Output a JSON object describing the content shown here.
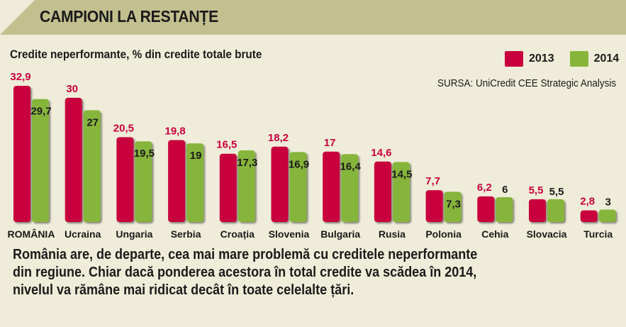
{
  "header": {
    "title": "CAMPIONI LA RESTANȚE"
  },
  "source": "SURSA: UniCredit CEE Strategic Analysis",
  "footer": {
    "line1": "România are, de departe, cea mai mare problemă cu creditele neperformante",
    "line2": "din regiune. Chiar dacă ponderea acestora în total credite va scădea în 2014,",
    "line3": "nivelul va rămâne mai ridicat decât în toate celelalte țări."
  },
  "colors": {
    "y2013": "#c8003e",
    "y2014": "#86b53a",
    "background": "#efedd9",
    "header": "#c3c08f"
  },
  "chart_data": {
    "type": "bar",
    "title": "Credite neperformante, % din credite totale brute",
    "categories": [
      "ROMÂNIA",
      "Ucraina",
      "Ungaria",
      "Serbia",
      "Croația",
      "Slovenia",
      "Bulgaria",
      "Rusia",
      "Polonia",
      "Cehia",
      "Slovacia",
      "Turcia"
    ],
    "series": [
      {
        "name": "2013",
        "values": [
          32.9,
          30,
          20.5,
          19.8,
          16.5,
          18.2,
          17,
          14.6,
          7.7,
          6.2,
          5.5,
          2.8
        ],
        "labels": [
          "32,9",
          "30",
          "20,5",
          "19,8",
          "16,5",
          "18,2",
          "17",
          "14,6",
          "7,7",
          "6,2",
          "5,5",
          "2,8"
        ]
      },
      {
        "name": "2014",
        "values": [
          29.7,
          27,
          19.5,
          19,
          17.3,
          16.9,
          16.4,
          14.5,
          7.3,
          6,
          5.5,
          3
        ],
        "labels": [
          "29,7",
          "27",
          "19,5",
          "19",
          "17,3",
          "16,9",
          "16,4",
          "14,5",
          "7,3",
          "6",
          "5,5",
          "3"
        ]
      }
    ],
    "legend_position": "top-right",
    "grid": false
  }
}
